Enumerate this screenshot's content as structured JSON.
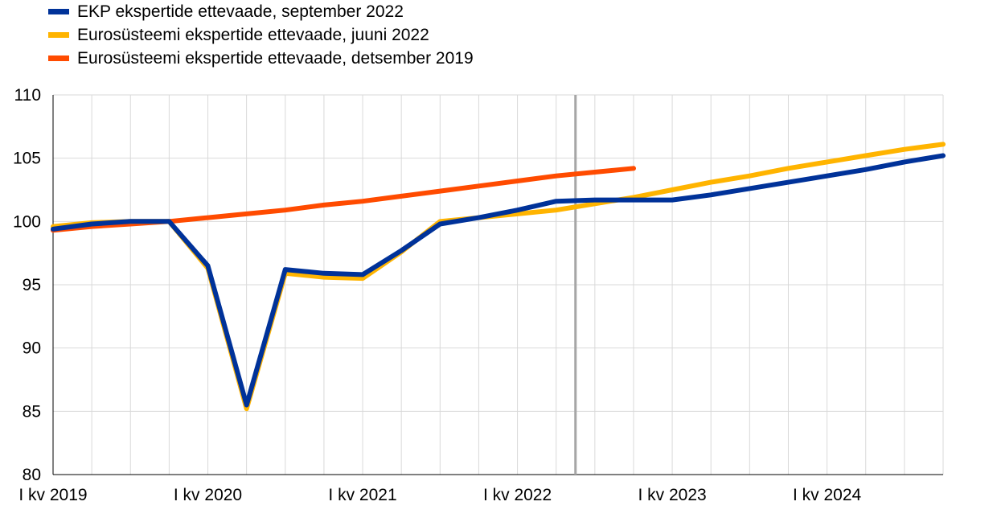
{
  "chart_data": {
    "type": "line",
    "title": "",
    "xlabel": "",
    "ylabel": "",
    "ylim": [
      80,
      110
    ],
    "yticks": [
      80,
      85,
      90,
      95,
      100,
      105,
      110
    ],
    "grid": true,
    "legend_position": "top-left",
    "x": [
      "2019Q1",
      "2019Q2",
      "2019Q3",
      "2019Q4",
      "2020Q1",
      "2020Q2",
      "2020Q3",
      "2020Q4",
      "2021Q1",
      "2021Q2",
      "2021Q3",
      "2021Q4",
      "2022Q1",
      "2022Q2",
      "2022Q3",
      "2022Q4",
      "2023Q1",
      "2023Q2",
      "2023Q3",
      "2023Q4",
      "2024Q1",
      "2024Q2",
      "2024Q3",
      "2024Q4"
    ],
    "x_tick_labels": [
      {
        "label": "I kv 2019",
        "x": "2019Q1"
      },
      {
        "label": "I kv 2020",
        "x": "2020Q1"
      },
      {
        "label": "I kv 2021",
        "x": "2021Q1"
      },
      {
        "label": "I kv 2022",
        "x": "2022Q1"
      },
      {
        "label": "I kv 2023",
        "x": "2023Q1"
      },
      {
        "label": "I kv 2024",
        "x": "2024Q1"
      }
    ],
    "vertical_marker": {
      "between": [
        "2022Q2",
        "2022Q3"
      ],
      "color": "#a6a6a6"
    },
    "series": [
      {
        "name": "Eurosüsteemi ekspertide ettevaade, detsember 2019",
        "color": "#ff4b00",
        "values": [
          99.3,
          99.6,
          99.8,
          100.0,
          100.3,
          100.6,
          100.9,
          101.3,
          101.6,
          102.0,
          102.4,
          102.8,
          103.2,
          103.6,
          103.9,
          104.2,
          null,
          null,
          null,
          null,
          null,
          null,
          null,
          null
        ]
      },
      {
        "name": "Eurosüsteemi ekspertide ettevaade, juuni 2022",
        "color": "#ffb400",
        "values": [
          99.6,
          99.9,
          100.0,
          100.0,
          96.3,
          85.2,
          95.9,
          95.6,
          95.5,
          97.6,
          100.0,
          100.3,
          100.6,
          100.9,
          101.4,
          101.9,
          102.5,
          103.1,
          103.6,
          104.2,
          104.7,
          105.2,
          105.7,
          106.1
        ]
      },
      {
        "name": "EKP ekspertide ettevaade, september 2022",
        "color": "#003299",
        "values": [
          99.4,
          99.8,
          100.0,
          100.0,
          96.5,
          85.5,
          96.2,
          95.9,
          95.8,
          97.7,
          99.8,
          100.3,
          100.9,
          101.6,
          101.7,
          101.7,
          101.7,
          102.1,
          102.6,
          103.1,
          103.6,
          104.1,
          104.7,
          105.2
        ]
      }
    ],
    "legend_order": [
      "EKP ekspertide ettevaade, september 2022",
      "Eurosüsteemi ekspertide ettevaade, juuni 2022",
      "Eurosüsteemi ekspertide ettevaade, detsember 2019"
    ]
  }
}
